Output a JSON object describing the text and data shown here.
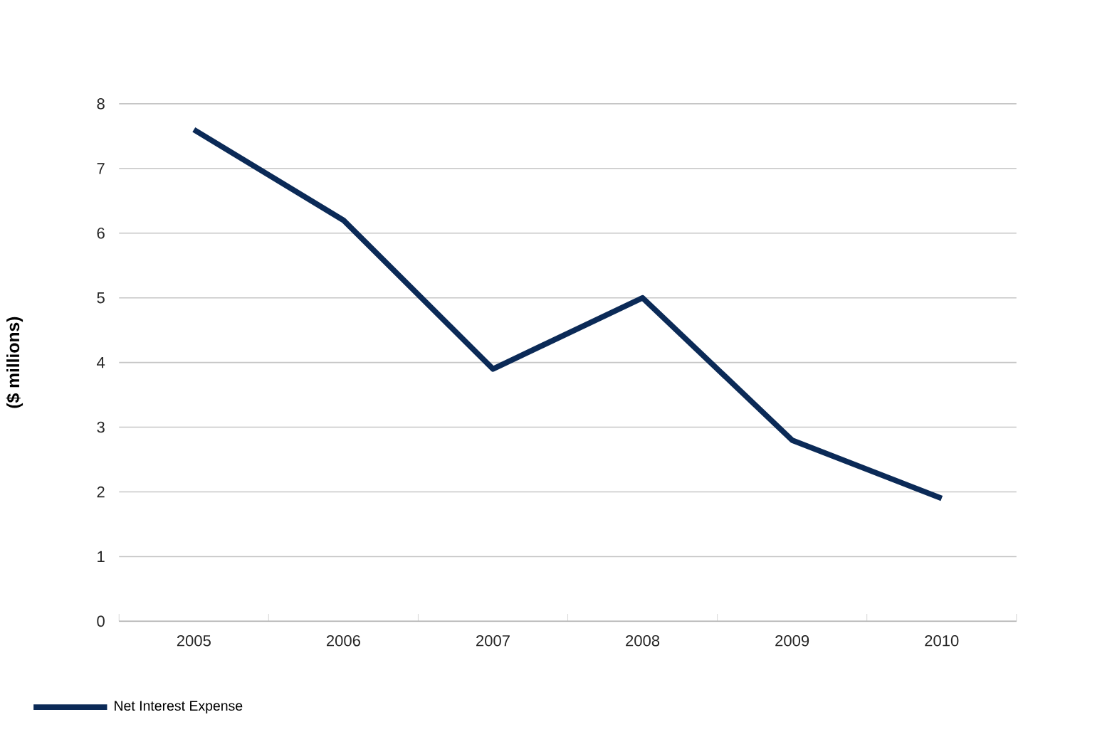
{
  "chart_data": {
    "type": "line",
    "ylabel": "($ millions)",
    "categories": [
      "2005",
      "2006",
      "2007",
      "2008",
      "2009",
      "2010"
    ],
    "series": [
      {
        "name": "Net Interest Expense",
        "color": "#0b2a57",
        "values": [
          7.6,
          6.2,
          3.9,
          5.0,
          2.8,
          1.9
        ]
      }
    ],
    "ylim": [
      0,
      8
    ],
    "yticks": [
      0,
      1,
      2,
      3,
      4,
      5,
      6,
      7,
      8
    ],
    "grid": "y",
    "legend": "bottom left",
    "marker": "none",
    "line_style": "solid"
  }
}
